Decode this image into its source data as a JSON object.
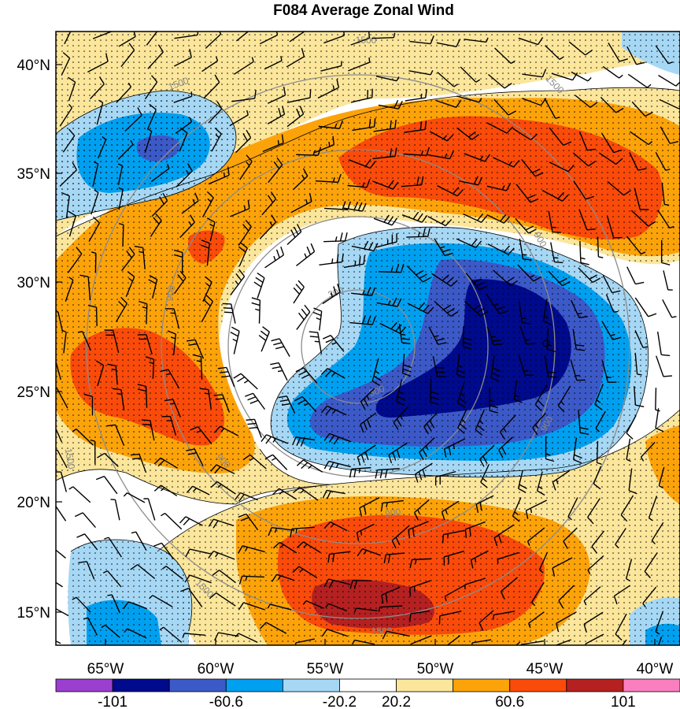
{
  "chart_data": {
    "type": "heatmap",
    "title": "F084 Average Zonal Wind",
    "x_ticks": [
      "65°W",
      "60°W",
      "55°W",
      "50°W",
      "45°W",
      "40°W"
    ],
    "y_ticks": [
      "40°N",
      "35°N",
      "30°N",
      "25°N",
      "20°N",
      "15°N"
    ],
    "colorbar": {
      "labels": [
        "-101",
        "-60.6",
        "-20.2",
        "20.2",
        "60.6",
        "101"
      ],
      "bins": [
        "#9b3fcf",
        "#000a8c",
        "#3c59c8",
        "#00a0f0",
        "#a6d8f5",
        "#ffffff",
        "#fbe69b",
        "#fda30a",
        "#fa4b0a",
        "#b52020",
        "#fa7fbf"
      ]
    },
    "range_ring_labels": [
      "300",
      "300",
      "900",
      "900",
      "900",
      "900",
      "900",
      "1500",
      "1500",
      "1500",
      "1500",
      "1500",
      "1500"
    ],
    "colors": {
      "strong_negative": "#000a8c",
      "negative": "#3c59c8",
      "moderate_negative": "#00a0f0",
      "weak_negative": "#a6d8f5",
      "weak_positive": "#fbe69b",
      "moderate_positive": "#fda30a",
      "positive": "#fa4b0a",
      "strong_positive": "#b52020"
    }
  }
}
